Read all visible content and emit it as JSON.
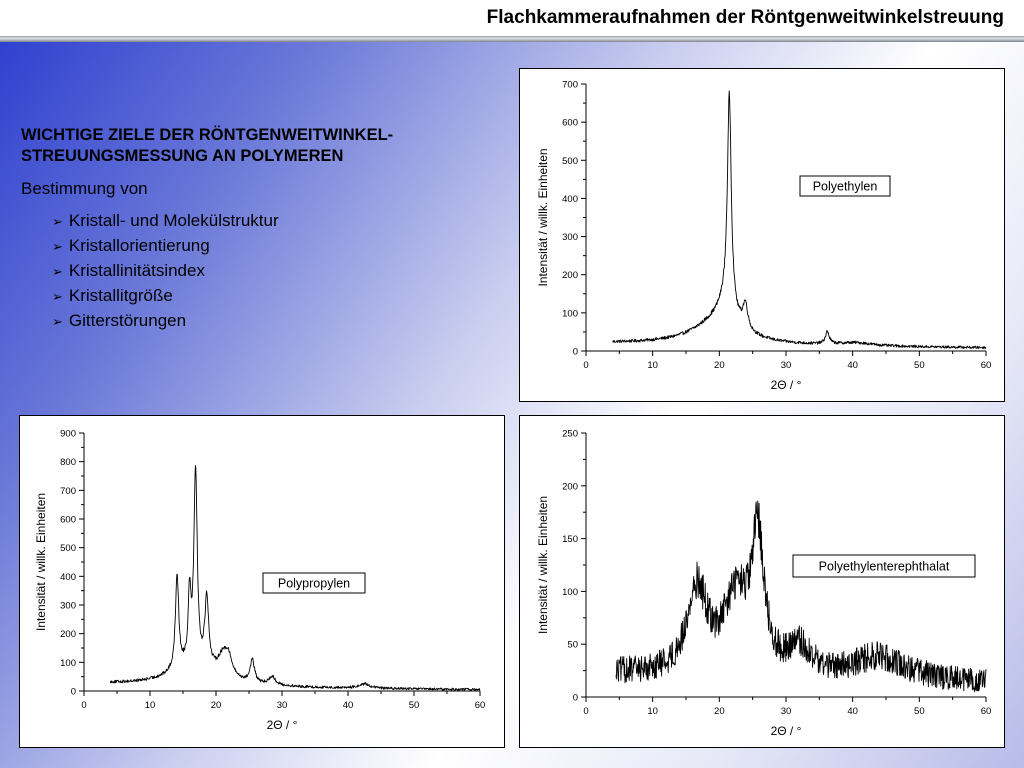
{
  "header": {
    "title": "Flachkammeraufnahmen der Röntgenweitwinkelstreuung"
  },
  "text": {
    "heading_line1": "WICHTIGE ZIELE DER RÖNTGENWEITWINKEL-",
    "heading_line2": "STREUUNGSMESSUNG AN POLYMEREN",
    "intro": "Bestimmung von",
    "bullet_icon": "arrowhead-bullet-icon",
    "items": [
      "Kristall- und Molekülstruktur",
      "Kristallorientierung",
      "Kristallinitätsindex",
      "Kristallitgröße",
      "Gitterstörungen"
    ]
  },
  "chart_data": [
    {
      "id": "pe",
      "type": "line",
      "label": "Polyethylen",
      "xlabel": "2Θ / °",
      "ylabel": "Intensität / willk. Einheiten",
      "xlim": [
        0,
        60
      ],
      "ylim": [
        0,
        700
      ],
      "xticks": [
        0,
        10,
        20,
        30,
        40,
        50,
        60
      ],
      "yticks": [
        0,
        100,
        200,
        300,
        400,
        500,
        600,
        700
      ],
      "x_range": [
        4,
        60
      ],
      "baseline": 20,
      "noise": 4,
      "peaks": [
        {
          "center": 19.5,
          "height": 55,
          "width": 4.5
        },
        {
          "center": 21.5,
          "height": 555,
          "width": 0.35
        },
        {
          "center": 21.0,
          "height": 60,
          "width": 1.6
        },
        {
          "center": 23.9,
          "height": 65,
          "width": 0.45
        },
        {
          "center": 36.2,
          "height": 32,
          "width": 0.35
        },
        {
          "center": 40.5,
          "height": 8,
          "width": 3.0
        }
      ],
      "decay": -0.16
    },
    {
      "id": "pp",
      "type": "line",
      "label": "Polypropylen",
      "xlabel": "2Θ / °",
      "ylabel": "Intensität / willk. Einheiten",
      "xlim": [
        0,
        60
      ],
      "ylim": [
        0,
        900
      ],
      "xticks": [
        0,
        10,
        20,
        30,
        40,
        50,
        60
      ],
      "yticks": [
        0,
        100,
        200,
        300,
        400,
        500,
        600,
        700,
        800,
        900
      ],
      "x_range": [
        4,
        60
      ],
      "baseline": 25,
      "noise": 5,
      "peaks": [
        {
          "center": 16.0,
          "height": 60,
          "width": 4.0
        },
        {
          "center": 14.1,
          "height": 330,
          "width": 0.3
        },
        {
          "center": 16.0,
          "height": 240,
          "width": 0.25
        },
        {
          "center": 16.9,
          "height": 690,
          "width": 0.3
        },
        {
          "center": 18.6,
          "height": 250,
          "width": 0.35
        },
        {
          "center": 21.2,
          "height": 90,
          "width": 1.2
        },
        {
          "center": 21.9,
          "height": 40,
          "width": 0.5
        },
        {
          "center": 25.5,
          "height": 80,
          "width": 0.4
        },
        {
          "center": 28.5,
          "height": 30,
          "width": 0.6
        },
        {
          "center": 42.5,
          "height": 15,
          "width": 1.0
        }
      ],
      "decay": -0.3
    },
    {
      "id": "pet",
      "type": "line",
      "label": "Polyethylenterephthalat",
      "xlabel": "2Θ / °",
      "ylabel": "Intensität / willk. Einheiten",
      "xlim": [
        0,
        60
      ],
      "ylim": [
        0,
        250
      ],
      "xticks": [
        0,
        10,
        20,
        30,
        40,
        50,
        60
      ],
      "yticks": [
        0,
        50,
        100,
        150,
        200,
        250
      ],
      "x_range": [
        4.5,
        60
      ],
      "baseline": 22,
      "noise": 13,
      "peaks": [
        {
          "center": 16.7,
          "height": 80,
          "width": 1.8
        },
        {
          "center": 22.5,
          "height": 70,
          "width": 2.2
        },
        {
          "center": 25.8,
          "height": 125,
          "width": 1.1
        },
        {
          "center": 32,
          "height": 25,
          "width": 2.0
        },
        {
          "center": 44,
          "height": 22,
          "width": 5.0
        }
      ],
      "decay": -0.1
    }
  ]
}
